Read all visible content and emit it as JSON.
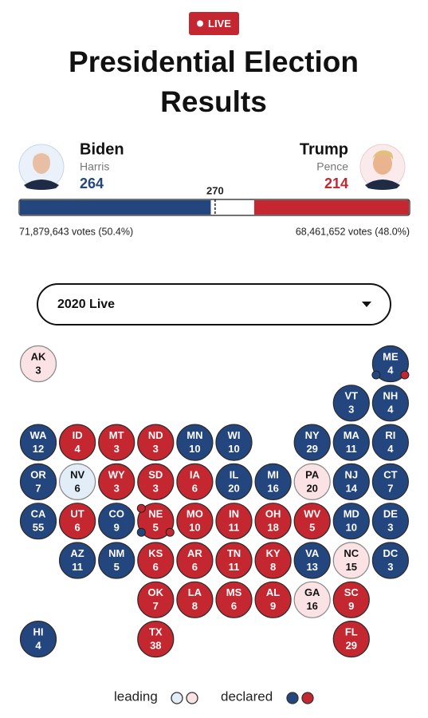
{
  "header": {
    "badge": "LIVE",
    "title": [
      "Presidential Election",
      "Results"
    ]
  },
  "candidates": [
    {
      "name": "Biden",
      "running_mate": "Harris",
      "electoral_votes": 264,
      "votes": "71,879,643 votes (50.4%)",
      "color": "#24467f"
    },
    {
      "name": "Trump",
      "running_mate": "Pence",
      "electoral_votes": 214,
      "votes": "68,461,652 votes (48.0%)",
      "color": "#c4272f"
    }
  ],
  "threshold": 270,
  "selector": "2020 Live",
  "legend": {
    "leading": {
      "label": "leading",
      "colors": [
        "#e3edf8",
        "#fbe3e5"
      ]
    },
    "declared": {
      "label": "declared",
      "colors": [
        "#24467f",
        "#c4272f"
      ]
    }
  },
  "states": [
    {
      "abbr": "AK",
      "ev": 3,
      "status": "leading",
      "party": 1
    },
    {
      "abbr": "ME",
      "ev": 4,
      "status": "declared",
      "party": 0
    },
    {
      "abbr": "VT",
      "ev": 3,
      "status": "declared",
      "party": 0
    },
    {
      "abbr": "NH",
      "ev": 4,
      "status": "declared",
      "party": 0
    },
    {
      "abbr": "WA",
      "ev": 12,
      "status": "declared",
      "party": 0
    },
    {
      "abbr": "ID",
      "ev": 4,
      "status": "declared",
      "party": 1
    },
    {
      "abbr": "MT",
      "ev": 3,
      "status": "declared",
      "party": 1
    },
    {
      "abbr": "ND",
      "ev": 3,
      "status": "declared",
      "party": 1
    },
    {
      "abbr": "MN",
      "ev": 10,
      "status": "declared",
      "party": 0
    },
    {
      "abbr": "WI",
      "ev": 10,
      "status": "declared",
      "party": 0
    },
    {
      "abbr": "NY",
      "ev": 29,
      "status": "declared",
      "party": 0
    },
    {
      "abbr": "MA",
      "ev": 11,
      "status": "declared",
      "party": 0
    },
    {
      "abbr": "RI",
      "ev": 4,
      "status": "declared",
      "party": 0
    },
    {
      "abbr": "OR",
      "ev": 7,
      "status": "declared",
      "party": 0
    },
    {
      "abbr": "NV",
      "ev": 6,
      "status": "leading",
      "party": 0
    },
    {
      "abbr": "WY",
      "ev": 3,
      "status": "declared",
      "party": 1
    },
    {
      "abbr": "SD",
      "ev": 3,
      "status": "declared",
      "party": 1
    },
    {
      "abbr": "IA",
      "ev": 6,
      "status": "declared",
      "party": 1
    },
    {
      "abbr": "IL",
      "ev": 20,
      "status": "declared",
      "party": 0
    },
    {
      "abbr": "MI",
      "ev": 16,
      "status": "declared",
      "party": 0
    },
    {
      "abbr": "PA",
      "ev": 20,
      "status": "leading",
      "party": 1
    },
    {
      "abbr": "NJ",
      "ev": 14,
      "status": "declared",
      "party": 0
    },
    {
      "abbr": "CT",
      "ev": 7,
      "status": "declared",
      "party": 0
    },
    {
      "abbr": "CA",
      "ev": 55,
      "status": "declared",
      "party": 0
    },
    {
      "abbr": "UT",
      "ev": 6,
      "status": "declared",
      "party": 1
    },
    {
      "abbr": "CO",
      "ev": 9,
      "status": "declared",
      "party": 0
    },
    {
      "abbr": "NE",
      "ev": 5,
      "status": "declared",
      "party": 1
    },
    {
      "abbr": "MO",
      "ev": 10,
      "status": "declared",
      "party": 1
    },
    {
      "abbr": "IN",
      "ev": 11,
      "status": "declared",
      "party": 1
    },
    {
      "abbr": "OH",
      "ev": 18,
      "status": "declared",
      "party": 1
    },
    {
      "abbr": "WV",
      "ev": 5,
      "status": "declared",
      "party": 1
    },
    {
      "abbr": "MD",
      "ev": 10,
      "status": "declared",
      "party": 0
    },
    {
      "abbr": "DE",
      "ev": 3,
      "status": "declared",
      "party": 0
    },
    {
      "abbr": "AZ",
      "ev": 11,
      "status": "declared",
      "party": 0
    },
    {
      "abbr": "NM",
      "ev": 5,
      "status": "declared",
      "party": 0
    },
    {
      "abbr": "KS",
      "ev": 6,
      "status": "declared",
      "party": 1
    },
    {
      "abbr": "AR",
      "ev": 6,
      "status": "declared",
      "party": 1
    },
    {
      "abbr": "TN",
      "ev": 11,
      "status": "declared",
      "party": 1
    },
    {
      "abbr": "KY",
      "ev": 8,
      "status": "declared",
      "party": 1
    },
    {
      "abbr": "VA",
      "ev": 13,
      "status": "declared",
      "party": 0
    },
    {
      "abbr": "NC",
      "ev": 15,
      "status": "leading",
      "party": 1
    },
    {
      "abbr": "DC",
      "ev": 3,
      "status": "declared",
      "party": 0
    },
    {
      "abbr": "OK",
      "ev": 7,
      "status": "declared",
      "party": 1
    },
    {
      "abbr": "LA",
      "ev": 8,
      "status": "declared",
      "party": 1
    },
    {
      "abbr": "MS",
      "ev": 6,
      "status": "declared",
      "party": 1
    },
    {
      "abbr": "AL",
      "ev": 9,
      "status": "declared",
      "party": 1
    },
    {
      "abbr": "GA",
      "ev": 16,
      "status": "leading",
      "party": 1
    },
    {
      "abbr": "SC",
      "ev": 9,
      "status": "declared",
      "party": 1
    },
    {
      "abbr": "HI",
      "ev": 4,
      "status": "declared",
      "party": 0
    },
    {
      "abbr": "TX",
      "ev": 38,
      "status": "declared",
      "party": 1
    },
    {
      "abbr": "FL",
      "ev": 29,
      "status": "declared",
      "party": 1
    }
  ]
}
